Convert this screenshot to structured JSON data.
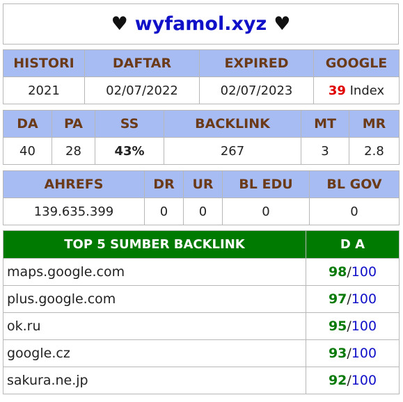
{
  "title": {
    "heart_left": "♥",
    "domain": "wyfamol.xyz",
    "heart_right": "♥"
  },
  "table1": {
    "headers": [
      "HISTORI",
      "DAFTAR",
      "EXPIRED",
      "GOOGLE"
    ],
    "histori": "2021",
    "daftar": "02/07/2022",
    "expired": "02/07/2023",
    "google_count": "39",
    "google_suffix": "Index"
  },
  "table2": {
    "headers": [
      "DA",
      "PA",
      "SS",
      "BACKLINK",
      "MT",
      "MR"
    ],
    "da": "40",
    "pa": "28",
    "ss": "43%",
    "backlink": "267",
    "mt": "3",
    "mr": "2.8"
  },
  "table3": {
    "headers": [
      "AHREFS",
      "DR",
      "UR",
      "BL EDU",
      "BL GOV"
    ],
    "ahrefs": "139.635.399",
    "dr": "0",
    "ur": "0",
    "bl_edu": "0",
    "bl_gov": "0"
  },
  "top_backlinks": {
    "header_source": "TOP 5 SUMBER BACKLINK",
    "header_da": "D A",
    "max": "100",
    "rows": [
      {
        "site": "maps.google.com",
        "da": "98"
      },
      {
        "site": "plus.google.com",
        "da": "97"
      },
      {
        "site": "ok.ru",
        "da": "95"
      },
      {
        "site": "google.cz",
        "da": "93"
      },
      {
        "site": "sakura.ne.jp",
        "da": "92"
      }
    ]
  },
  "colors": {
    "header_bg": "#a7bcf2",
    "header_text": "#6b3a18",
    "top_header_bg": "#007a00",
    "domain": "#1010c8",
    "google_count": "#e00000",
    "ss": "#f5a51a",
    "da_value": "#0a7a0a",
    "da_max": "#1010c8"
  }
}
